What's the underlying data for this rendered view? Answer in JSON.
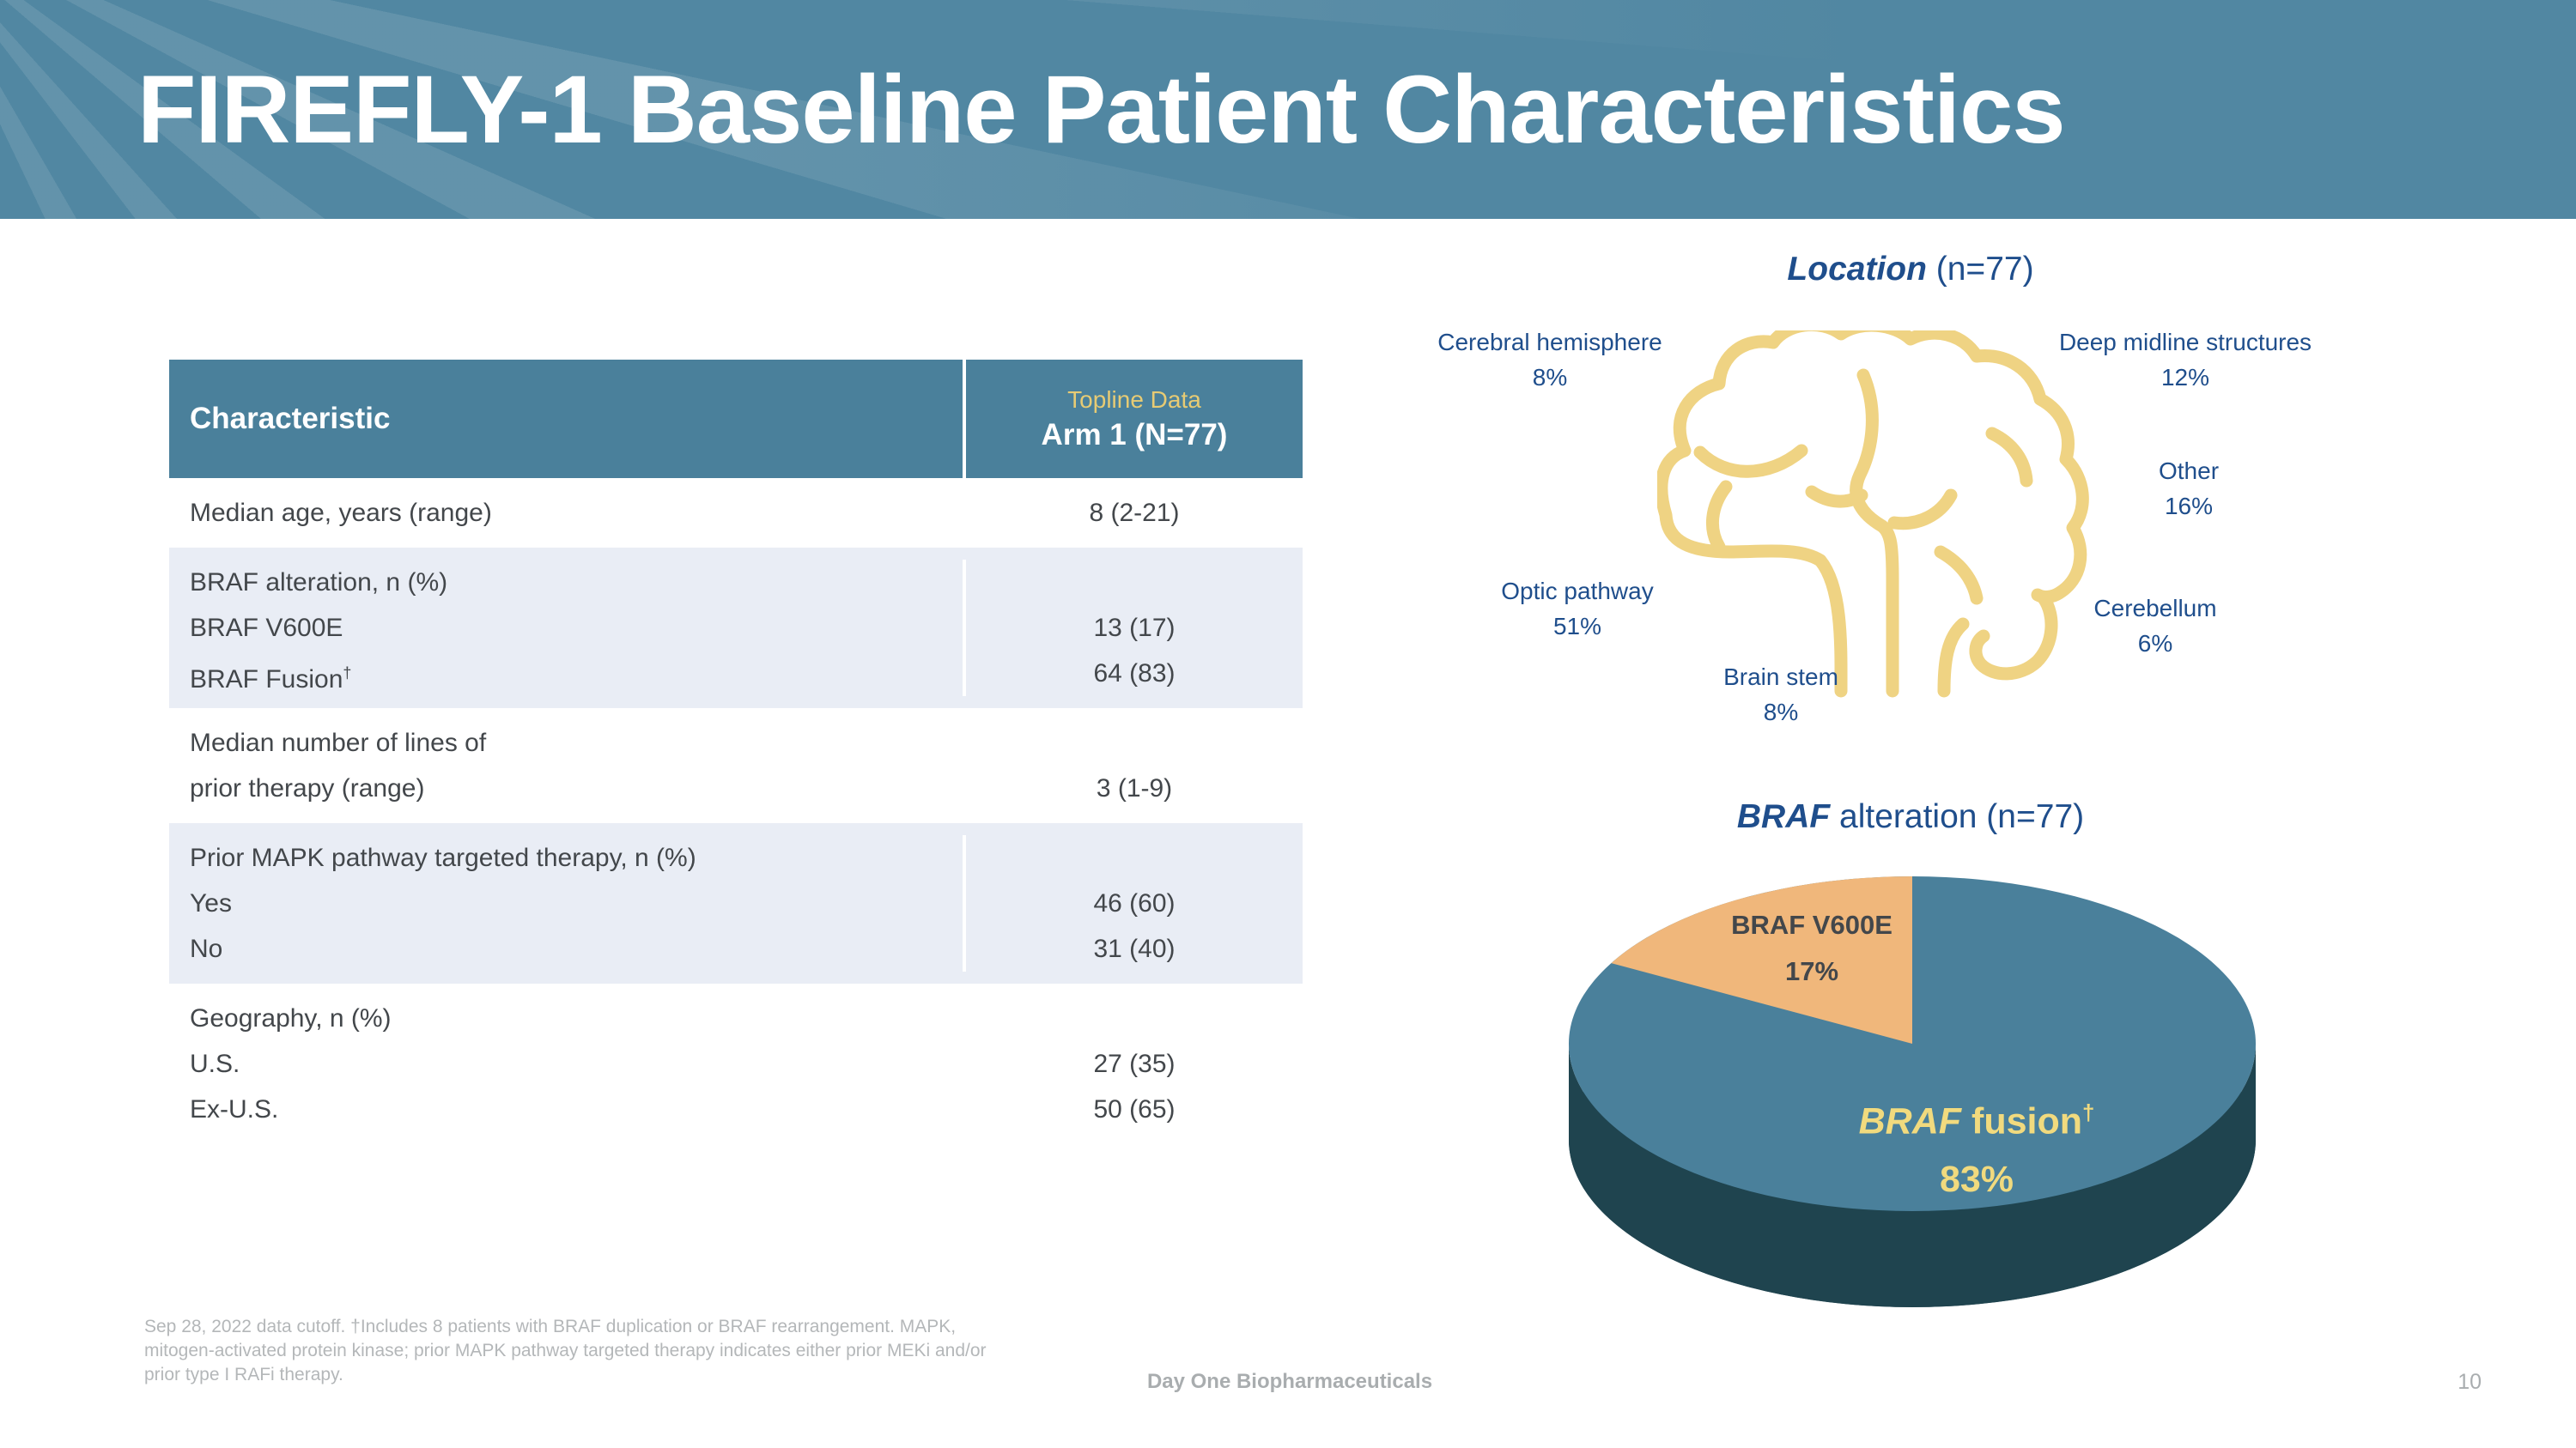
{
  "slide": {
    "title": "FIREFLY-1 Baseline Patient Characteristics",
    "footer_brand": "Day One Biopharmaceuticals",
    "page_number": "10",
    "footnote_lines": [
      "Sep 28, 2022 data cutoff. †Includes 8 patients with BRAF duplication or BRAF rearrangement.  MAPK,",
      "mitogen-activated protein kinase; prior MAPK pathway targeted therapy indicates either prior MEKi and/or",
      "prior type I RAFi therapy."
    ],
    "colors": {
      "banner_teal": "#5187A2",
      "table_header_teal": "#4A809B",
      "row_shade": "#E9EDF5",
      "dark_blue": "#1F4E8C",
      "gold": "#E7CB74",
      "brain_gold": "#EFD383",
      "pie_teal": "#4A809B",
      "pie_dark_base": "#1F444F",
      "pie_orange": "#F0B77B",
      "fusion_yellow": "#F1DA7E"
    }
  },
  "table": {
    "header": {
      "characteristic": "Characteristic",
      "topline": "Topline Data",
      "arm": "Arm 1 (N=77)"
    },
    "rows": [
      {
        "lines": [
          "Median age, years (range)"
        ],
        "values": [
          "8 (2-21)"
        ]
      },
      {
        "lines": [
          "BRAF alteration, n (%)",
          "BRAF V600E",
          "BRAF Fusion"
        ],
        "sup": "†",
        "values": [
          "",
          "13 (17)",
          "64 (83)"
        ]
      },
      {
        "lines": [
          "Median number of lines of",
          "prior therapy (range)"
        ],
        "values": [
          "",
          "3 (1-9)"
        ]
      },
      {
        "lines": [
          "Prior MAPK pathway targeted therapy, n (%)",
          "Yes",
          "No"
        ],
        "values": [
          "",
          "46 (60)",
          "31 (40)"
        ]
      },
      {
        "lines": [
          "Geography, n (%)",
          "U.S.",
          "Ex-U.S."
        ],
        "values": [
          "",
          "27 (35)",
          "50 (65)"
        ]
      }
    ]
  },
  "location": {
    "title_gene": "Location",
    "title_rest": " (n=77)",
    "labels": [
      {
        "name": "Cerebral hemisphere",
        "pct": "8%"
      },
      {
        "name": "Deep midline structures",
        "pct": "12%"
      },
      {
        "name": "Other",
        "pct": "16%"
      },
      {
        "name": "Optic pathway",
        "pct": "51%"
      },
      {
        "name": "Brain stem",
        "pct": "8%"
      },
      {
        "name": "Cerebellum",
        "pct": "6%"
      }
    ]
  },
  "braf_pie": {
    "title_gene": "BRAF",
    "title_rest": " alteration (n=77)",
    "v600e_label": "BRAF V600E",
    "v600e_pct": "17%",
    "fusion_gene": "BRAF",
    "fusion_rest": " fusion",
    "fusion_sup": "†",
    "fusion_pct": "83%"
  },
  "chart_data": {
    "type": "pie",
    "title": "BRAF alteration (n=77)",
    "categories": [
      "BRAF fusion†",
      "BRAF V600E"
    ],
    "values": [
      83,
      17
    ],
    "colors": [
      "#4A809B",
      "#F0B77B"
    ],
    "style": "3d-pie, slice starts at 12 o'clock, V600E wedge counterclockwise to ~10 o'clock",
    "related_distribution": {
      "title": "Location (n=77)",
      "categories": [
        "Optic pathway",
        "Other",
        "Deep midline structures",
        "Cerebral hemisphere",
        "Brain stem",
        "Cerebellum"
      ],
      "values": [
        51,
        16,
        12,
        8,
        8,
        6
      ]
    }
  }
}
